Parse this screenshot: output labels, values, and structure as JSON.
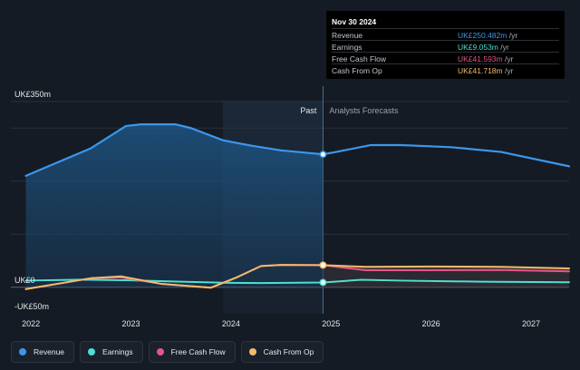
{
  "chart_data": {
    "type": "line",
    "y_unit_prefix": "UK£",
    "y_unit_suffix": "m",
    "ylim": [
      -50,
      350
    ],
    "xlim": [
      2021.8,
      2027.38
    ],
    "y_tick_labels": [
      {
        "value": 350,
        "label": "UK£350m"
      },
      {
        "value": 0,
        "label": "UK£0"
      },
      {
        "value": -50,
        "label": "-UK£50m"
      }
    ],
    "x_ticks": [
      {
        "value": 2022,
        "label": "2022"
      },
      {
        "value": 2023,
        "label": "2023"
      },
      {
        "value": 2024,
        "label": "2024"
      },
      {
        "value": 2025,
        "label": "2025"
      },
      {
        "value": 2026,
        "label": "2026"
      },
      {
        "value": 2027,
        "label": "2027"
      }
    ],
    "gridlines": [
      350,
      300,
      200,
      100,
      0
    ],
    "past_label": "Past",
    "forecast_label": "Analysts Forecasts",
    "forecast_start": 2024.92,
    "highlight_start": 2023.92,
    "series": [
      {
        "name": "Revenue",
        "color": "#3b97ec",
        "points": [
          [
            2021.95,
            210
          ],
          [
            2022.3,
            238
          ],
          [
            2022.6,
            262
          ],
          [
            2022.95,
            304
          ],
          [
            2023.1,
            307
          ],
          [
            2023.45,
            307
          ],
          [
            2023.6,
            300
          ],
          [
            2023.92,
            277
          ],
          [
            2024.2,
            267
          ],
          [
            2024.5,
            258
          ],
          [
            2024.92,
            250.5
          ],
          [
            2025.05,
            255
          ],
          [
            2025.4,
            268
          ],
          [
            2025.7,
            268
          ],
          [
            2026.2,
            264
          ],
          [
            2026.7,
            255
          ],
          [
            2027.38,
            228
          ]
        ]
      },
      {
        "name": "Earnings",
        "color": "#4de0d2",
        "points": [
          [
            2021.95,
            12.5
          ],
          [
            2022.5,
            14.3
          ],
          [
            2023.0,
            13.0
          ],
          [
            2023.5,
            10.5
          ],
          [
            2023.92,
            8.5
          ],
          [
            2024.3,
            8.0
          ],
          [
            2024.92,
            9.05
          ],
          [
            2025.3,
            14.0
          ],
          [
            2025.7,
            12.5
          ],
          [
            2026.5,
            10.5
          ],
          [
            2027.38,
            9.5
          ]
        ]
      },
      {
        "name": "Free Cash Flow",
        "color": "#e45685",
        "points": [
          [
            2021.95,
            -3.5
          ],
          [
            2022.6,
            17.0
          ],
          [
            2022.9,
            18.5
          ],
          [
            2023.3,
            6.5
          ],
          [
            2023.8,
            -0.8
          ],
          [
            2024.05,
            18.0
          ],
          [
            2024.3,
            40.0
          ],
          [
            2024.5,
            42.0
          ],
          [
            2024.92,
            41.6
          ],
          [
            2025.35,
            32.0
          ],
          [
            2026.0,
            32.0
          ],
          [
            2026.7,
            32.5
          ],
          [
            2027.38,
            30.0
          ]
        ]
      },
      {
        "name": "Cash From Op",
        "color": "#f3bb6a",
        "points": [
          [
            2021.95,
            -3.5
          ],
          [
            2022.6,
            17.0
          ],
          [
            2022.9,
            20.5
          ],
          [
            2023.3,
            6.5
          ],
          [
            2023.8,
            -0.8
          ],
          [
            2024.05,
            18.0
          ],
          [
            2024.3,
            40.0
          ],
          [
            2024.5,
            42.0
          ],
          [
            2024.92,
            41.7
          ],
          [
            2025.35,
            38.5
          ],
          [
            2026.0,
            39.0
          ],
          [
            2026.7,
            38.5
          ],
          [
            2027.38,
            35.5
          ]
        ]
      }
    ]
  },
  "tooltip": {
    "date": "Nov 30 2024",
    "rows": [
      {
        "label": "Revenue",
        "value": "UK£250.482m",
        "unit": " /yr",
        "color": "#3b97ec"
      },
      {
        "label": "Earnings",
        "value": "UK£9.053m",
        "unit": " /yr",
        "color": "#4de0d2"
      },
      {
        "label": "Free Cash Flow",
        "value": "UK£41.593m",
        "unit": " /yr",
        "color": "#e45685"
      },
      {
        "label": "Cash From Op",
        "value": "UK£41.718m",
        "unit": " /yr",
        "color": "#f3bb6a"
      }
    ]
  },
  "legend": [
    {
      "label": "Revenue",
      "color": "#3b97ec"
    },
    {
      "label": "Earnings",
      "color": "#4de0d2"
    },
    {
      "label": "Free Cash Flow",
      "color": "#e45685"
    },
    {
      "label": "Cash From Op",
      "color": "#f3bb6a"
    }
  ]
}
